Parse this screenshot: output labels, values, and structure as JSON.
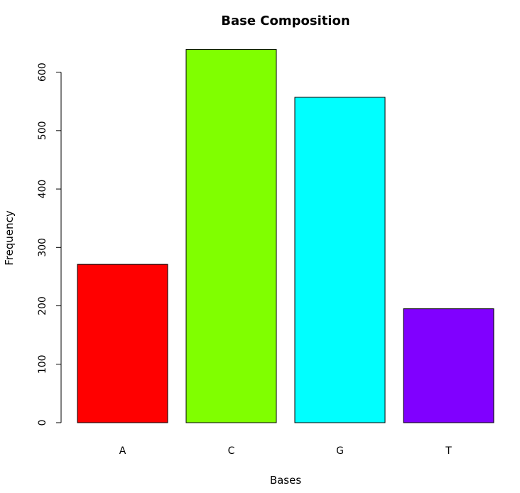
{
  "chart_data": {
    "type": "bar",
    "title": "Base Composition",
    "xlabel": "Bases",
    "ylabel": "Frequency",
    "categories": [
      "A",
      "C",
      "G",
      "T"
    ],
    "values": [
      271,
      639,
      557,
      195
    ],
    "colors": [
      "#FF0000",
      "#80FF00",
      "#00FFFF",
      "#8000FF"
    ],
    "ylim": [
      0,
      639
    ],
    "yticks": [
      0,
      100,
      200,
      300,
      400,
      500,
      600
    ],
    "grid": false,
    "legend": "none"
  }
}
